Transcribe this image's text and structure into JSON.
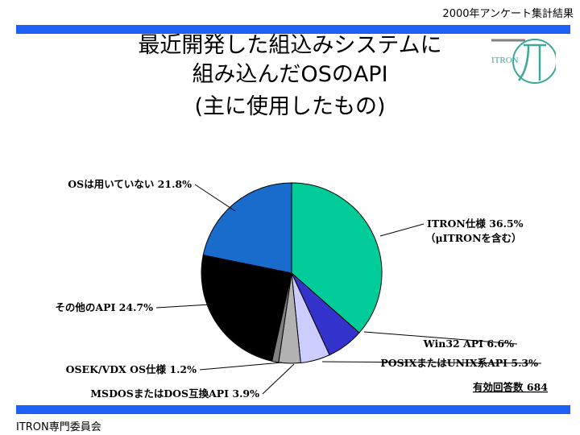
{
  "header": {
    "survey_label": "2000年アンケート集計結果"
  },
  "title": {
    "line1": "最近開発した組込みシステムに",
    "line2": "組み込んだOSのAPI",
    "line3": "(主に使用したもの)"
  },
  "logo": {
    "text": "ITRON",
    "color": "#3aa89a"
  },
  "footer": {
    "org": "ITRON専門委員会"
  },
  "colors": {
    "bar": "#1e5ff5"
  },
  "chart_data": {
    "type": "pie",
    "start_angle_deg": 0,
    "direction": "clockwise",
    "slices": [
      {
        "label": "ITRON仕様 36.5%",
        "sublabel": "（μITRONを含む）",
        "value": 36.5,
        "color": "#00cc99"
      },
      {
        "label": "Win32 API 6.6%",
        "value": 6.6,
        "color": "#3333cc"
      },
      {
        "label": "POSIXまたはUNIX系API 5.3%",
        "value": 5.3,
        "color": "#ccccff"
      },
      {
        "label": "MSDOSまたはDOS互換API 3.9%",
        "value": 3.9,
        "color": "#b2b2b2"
      },
      {
        "label": "OSEK/VDX OS仕様 1.2%",
        "value": 1.2,
        "color": "#808080"
      },
      {
        "label": "その他のAPI 24.7%",
        "value": 24.7,
        "color": "#000000"
      },
      {
        "label": "OSは用いていない 21.8%",
        "value": 21.8,
        "color": "#1a6ccc"
      }
    ],
    "annotation": "有効回答数 684"
  }
}
